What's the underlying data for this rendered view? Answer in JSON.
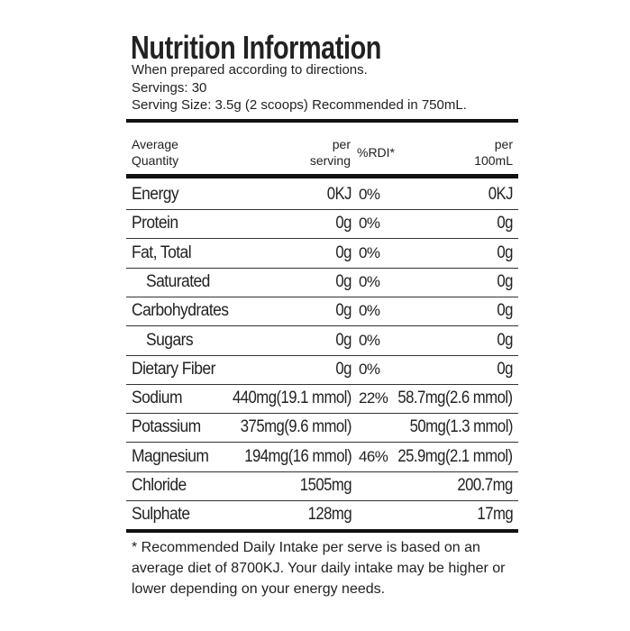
{
  "header": {
    "title": "Nutrition Information",
    "lines": [
      "When prepared according to directions.",
      "Servings: 30",
      "Serving Size: 3.5g (2 scoops) Recommended in 750mL."
    ]
  },
  "table": {
    "columns": {
      "quantity": [
        "Average",
        "Quantity"
      ],
      "per_serving": [
        "per",
        "serving"
      ],
      "rdi": "%RDI*",
      "per_100ml": [
        "per",
        "100mL"
      ]
    },
    "rows": [
      {
        "name": "Energy",
        "per_serving": "0KJ",
        "rdi": "0%",
        "per_100ml": "0KJ"
      },
      {
        "name": "Protein",
        "per_serving": "0g",
        "rdi": "0%",
        "per_100ml": "0g"
      },
      {
        "name": "Fat, Total",
        "per_serving": "0g",
        "rdi": "0%",
        "per_100ml": "0g"
      },
      {
        "name": "Saturated",
        "per_serving": "0g",
        "rdi": "0%",
        "per_100ml": "0g"
      },
      {
        "name": "Carbohydrates",
        "per_serving": "0g",
        "rdi": "0%",
        "per_100ml": "0g"
      },
      {
        "name": "Sugars",
        "per_serving": "0g",
        "rdi": "0%",
        "per_100ml": "0g"
      },
      {
        "name": "Dietary Fiber",
        "per_serving": "0g",
        "rdi": "0%",
        "per_100ml": "0g"
      },
      {
        "name": "Sodium",
        "per_serving": "440mg(19.1 mmol)",
        "rdi": "22%",
        "per_100ml": "58.7mg(2.6 mmol)"
      },
      {
        "name": "Potassium",
        "per_serving": "375mg(9.6 mmol)",
        "per_100ml": "50mg(1.3 mmol)"
      },
      {
        "name": "Magnesium",
        "per_serving": "194mg(16 mmol)",
        "rdi": "46%",
        "per_100ml": "25.9mg(2.1 mmol)"
      },
      {
        "name": "Chloride",
        "per_serving": "1505mg",
        "per_100ml": "200.7mg"
      },
      {
        "name": "Sulphate",
        "per_serving": "128mg",
        "per_100ml": "17mg"
      }
    ]
  },
  "footnote": [
    "* Recommended Daily Intake per serve is based on an",
    "average diet of 8700KJ. Your daily intake may be higher or",
    "lower depending on your energy needs."
  ]
}
